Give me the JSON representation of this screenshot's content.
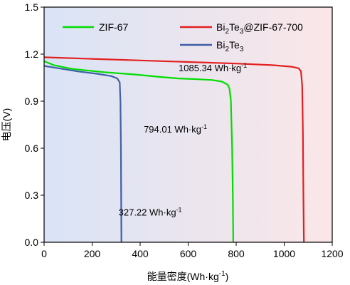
{
  "chart_data": {
    "type": "line",
    "xlabel": {
      "main": "能量密度(Wh·kg",
      "sup": "-1",
      "close": ")"
    },
    "ylabel": "电压(V)",
    "xlim": [
      0,
      1200
    ],
    "ylim": [
      0,
      1.5
    ],
    "xticks": [
      0,
      200,
      400,
      600,
      800,
      1000,
      1200
    ],
    "yticks": [
      0.0,
      0.3,
      0.6,
      0.9,
      1.2,
      1.5
    ],
    "ytick_labels": [
      "0.0",
      "0.3",
      "0.6",
      "0.9",
      "1.2",
      "1.5"
    ],
    "grid": false,
    "legend_position": "top",
    "background": {
      "from": "#d9e4f6",
      "to": "#fbe6e8"
    },
    "series": [
      {
        "key": "zif",
        "name": "ZIF-67",
        "color": "#00dd00",
        "points": [
          [
            0,
            1.155
          ],
          [
            40,
            1.13
          ],
          [
            120,
            1.105
          ],
          [
            250,
            1.085
          ],
          [
            380,
            1.07
          ],
          [
            480,
            1.055
          ],
          [
            560,
            1.045
          ],
          [
            640,
            1.04
          ],
          [
            700,
            1.035
          ],
          [
            740,
            1.025
          ],
          [
            765,
            1.005
          ],
          [
            772,
            0.98
          ],
          [
            778,
            0.9
          ],
          [
            783,
            0.6
          ],
          [
            786,
            0.3
          ],
          [
            788,
            0.0
          ]
        ]
      },
      {
        "key": "bi2te3zif",
        "name": "Bi2Te3@ZIF-67-700",
        "color": "#e32020",
        "points": [
          [
            0,
            1.18
          ],
          [
            200,
            1.17
          ],
          [
            400,
            1.16
          ],
          [
            600,
            1.15
          ],
          [
            800,
            1.14
          ],
          [
            950,
            1.13
          ],
          [
            1030,
            1.12
          ],
          [
            1060,
            1.11
          ],
          [
            1070,
            1.09
          ],
          [
            1075,
            1.0
          ],
          [
            1078,
            0.7
          ],
          [
            1080,
            0.3
          ],
          [
            1082,
            0.0
          ]
        ]
      },
      {
        "key": "bi2te3",
        "name": "Bi2Te3",
        "color": "#3f5fa6",
        "points": [
          [
            0,
            1.125
          ],
          [
            60,
            1.11
          ],
          [
            140,
            1.09
          ],
          [
            220,
            1.075
          ],
          [
            280,
            1.06
          ],
          [
            305,
            1.045
          ],
          [
            315,
            1.02
          ],
          [
            318,
            0.9
          ],
          [
            320,
            0.6
          ],
          [
            321,
            0.3
          ],
          [
            322,
            0.0
          ]
        ]
      }
    ],
    "legend": {
      "zif": {
        "label": "ZIF-67"
      },
      "bi2te3zif": {
        "p1": "Bi",
        "s1": "2",
        "p2": "Te",
        "s2": "3",
        "p3": "@ZIF-67-700"
      },
      "bi2te3": {
        "p1": "Bi",
        "s1": "2",
        "p2": "Te",
        "s2": "3"
      }
    },
    "annotations": [
      {
        "key": "a1085",
        "value": "1085.34 Wh·kg",
        "sup": "-1",
        "at": [
          560,
          1.09
        ]
      },
      {
        "key": "a794",
        "value": "794.01 Wh·kg",
        "sup": "-1",
        "at": [
          415,
          0.7
        ]
      },
      {
        "key": "a327",
        "value": "327.22 Wh·kg",
        "sup": "-1",
        "at": [
          310,
          0.17
        ]
      }
    ]
  }
}
